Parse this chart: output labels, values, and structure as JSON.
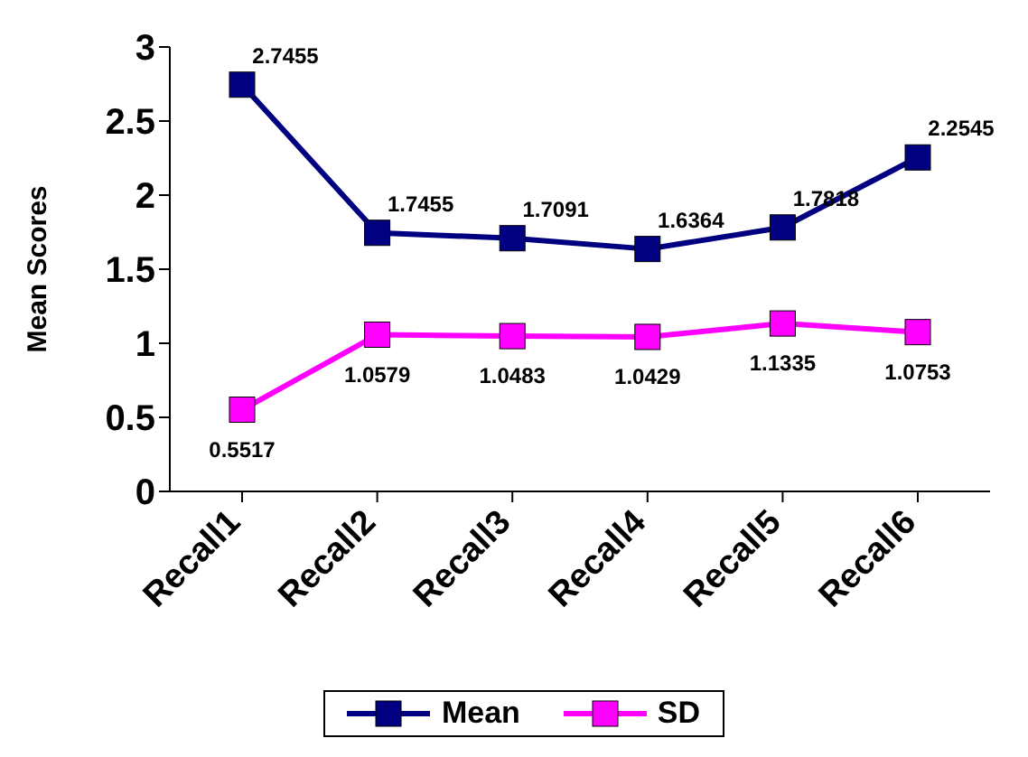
{
  "chart_data": {
    "type": "line",
    "ylabel": "Mean Scores",
    "categories": [
      "Recall1",
      "Recall2",
      "Recall3",
      "Recall4",
      "Recall5",
      "Recall6"
    ],
    "series": [
      {
        "name": "Mean",
        "color": "#000080",
        "values": [
          2.7455,
          1.7455,
          1.7091,
          1.6364,
          1.7818,
          2.2545
        ]
      },
      {
        "name": "SD",
        "color": "#ff00ff",
        "values": [
          0.5517,
          1.0579,
          1.0483,
          1.0429,
          1.1335,
          1.0753
        ]
      }
    ],
    "ylim": [
      0,
      3
    ],
    "yticks": [
      0,
      0.5,
      1,
      1.5,
      2,
      2.5,
      3
    ],
    "grid": false,
    "legend": "bottom",
    "marker": "square",
    "line_style": "solid",
    "data_labels": true
  }
}
